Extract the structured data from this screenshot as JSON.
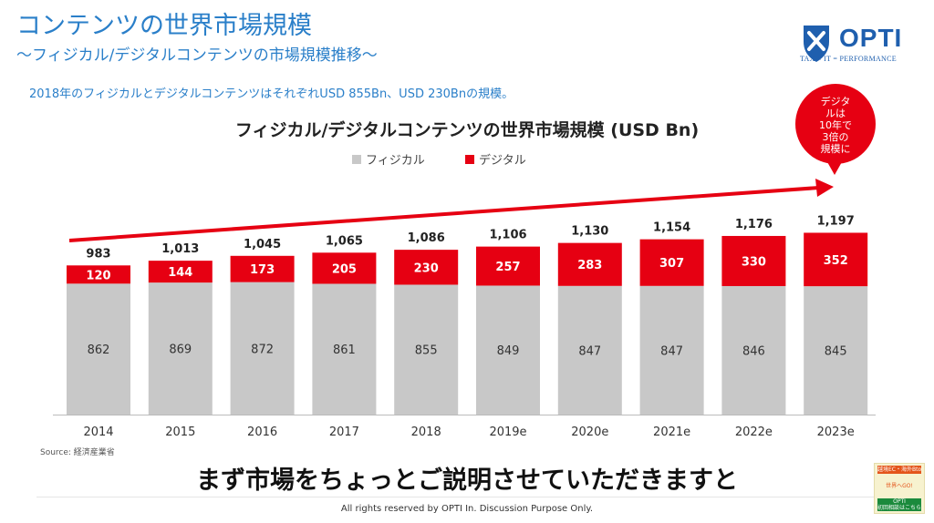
{
  "header": {
    "title": "コンテンツの世界市場規模",
    "subtitle": "〜フィジカル/デジタルコンテンツの市場規模推移〜",
    "summary": "2018年のフィジカルとデジタルコンテンツはそれぞれUSD 855Bn、USD 230Bnの規模。"
  },
  "logo": {
    "name": "OPTI",
    "tagline": "TAX × IT = PERFORMANCE",
    "color": "#1f5fae"
  },
  "callout": {
    "text": "デジタ\nルは\n10年で\n3倍の\n規模に",
    "color": "#e60012"
  },
  "chart_data": {
    "type": "bar",
    "stacked": true,
    "title": "フィジカル/デジタルコンテンツの世界市場規模 (USD Bn)",
    "categories": [
      "2014",
      "2015",
      "2016",
      "2017",
      "2018",
      "2019e",
      "2020e",
      "2021e",
      "2022e",
      "2023e"
    ],
    "series": [
      {
        "name": "フィジカル",
        "color": "#c8c8c8",
        "values": [
          862,
          869,
          872,
          861,
          855,
          849,
          847,
          847,
          846,
          845
        ]
      },
      {
        "name": "デジタル",
        "color": "#e60012",
        "values": [
          120,
          144,
          173,
          205,
          230,
          257,
          283,
          307,
          330,
          352
        ]
      }
    ],
    "totals": [
      "983",
      "1,013",
      "1,045",
      "1,065",
      "1,086",
      "1,106",
      "1,130",
      "1,154",
      "1,176",
      "1,197"
    ],
    "legend_position": "top",
    "grid": false,
    "xlabel": "",
    "ylabel": "",
    "ylim": [
      0,
      1200
    ]
  },
  "source": "Source: 経済産業省",
  "caption": "まず市場をちょっとご説明させていただきますと",
  "footer": "All rights reserved by OPTI In. Discussion Purpose Only.",
  "badge": {
    "top": "越境EC・海外BtoB",
    "middle": "世界へGO!",
    "bottom": "OPTI\n初回相談はこちら"
  }
}
